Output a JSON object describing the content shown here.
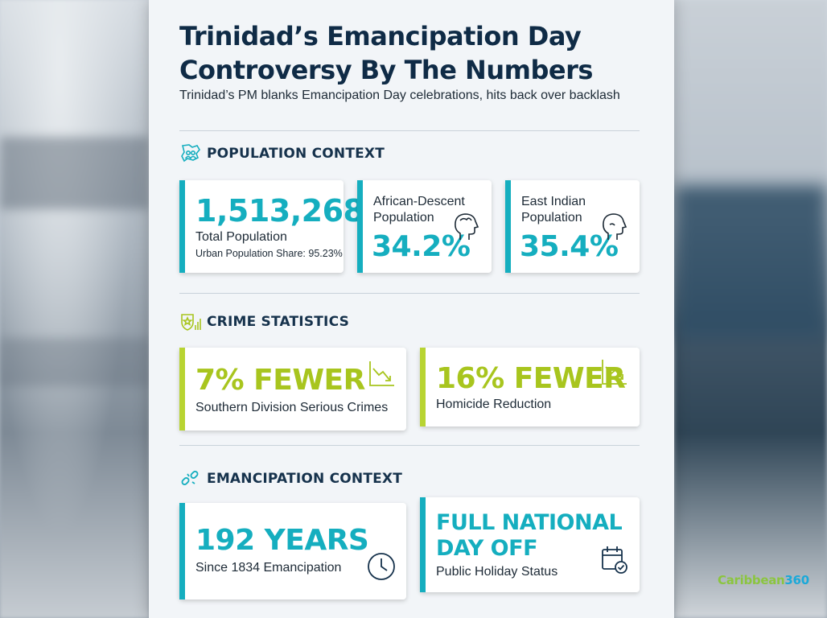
{
  "title_line1": "Trinidad’s Emancipation Day",
  "title_line2": "Controversy By The Numbers",
  "subtitle": "Trinidad’s PM blanks Emancipation Day celebrations, hits back over backlash",
  "sections": {
    "population": {
      "heading": "POPULATION CONTEXT",
      "total": {
        "value": "1,513,268",
        "label": "Total Population",
        "sub": "Urban Population Share: 95.23%"
      },
      "african": {
        "label_line1": "African-Descent",
        "label_line2": "Population",
        "value": "34.2%"
      },
      "indian": {
        "label_line1": "East Indian",
        "label_line2": "Population",
        "value": "35.4%"
      }
    },
    "crime": {
      "heading": "CRIME STATISTICS",
      "southern": {
        "value": "7% FEWER",
        "label": "Southern Division Serious Crimes"
      },
      "homicide": {
        "value": "16% FEWER",
        "label": "Homicide Reduction"
      }
    },
    "emancipation": {
      "heading": "EMANCIPATION CONTEXT",
      "years": {
        "value": "192 YEARS",
        "label": "Since 1834 Emancipation"
      },
      "holiday": {
        "value_line1": "FULL NATIONAL",
        "value_line2": "DAY OFF",
        "label": "Public Holiday Status"
      }
    }
  },
  "logo": {
    "part1": "Caribbean",
    "part2": "360"
  },
  "colors": {
    "teal": "#15aebf",
    "lime": "#a8c51e",
    "navy": "#0f2b46"
  }
}
